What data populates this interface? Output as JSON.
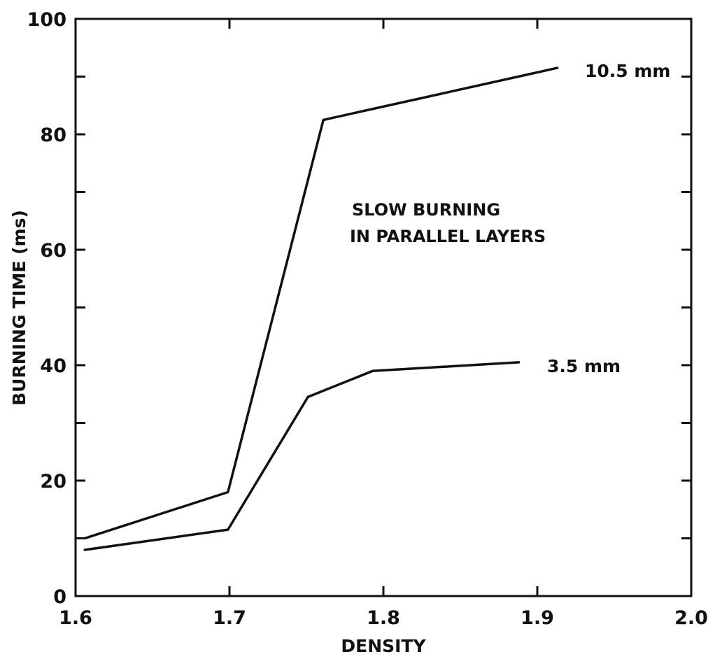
{
  "chart_data": {
    "type": "line",
    "title": "",
    "xlabel": "DENSITY",
    "ylabel": "BURNING TIME (ms)",
    "xlim": [
      1.6,
      2.0
    ],
    "ylim": [
      0,
      100
    ],
    "x_tick_labels": [
      "1.6",
      "1.7",
      "1.8",
      "1.9",
      "2.0"
    ],
    "y_tick_labels": [
      "0",
      "20",
      "40",
      "60",
      "80",
      "100"
    ],
    "grid": false,
    "annotation_lines": [
      "SLOW BURNING",
      "IN PARALLEL LAYERS"
    ],
    "series": [
      {
        "name": "10.5 mm",
        "x": [
          1.606,
          1.699,
          1.761,
          1.913
        ],
        "y": [
          10.0,
          18.0,
          82.5,
          91.5
        ]
      },
      {
        "name": "3.5 mm",
        "x": [
          1.606,
          1.699,
          1.751,
          1.793,
          1.888
        ],
        "y": [
          8.0,
          11.5,
          34.5,
          39.0,
          40.5
        ]
      }
    ]
  }
}
